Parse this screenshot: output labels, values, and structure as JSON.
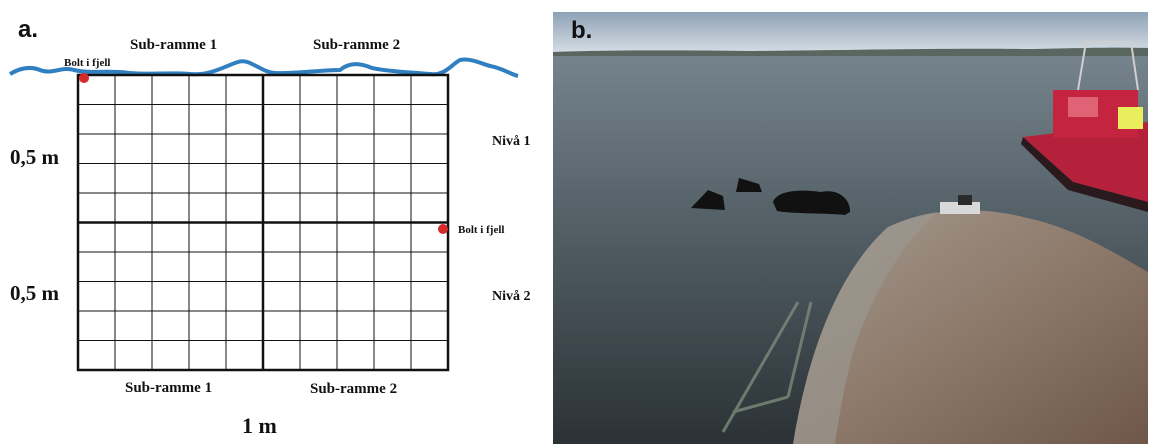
{
  "panel_a": {
    "letter": "a.",
    "top_sub_frame_1": "Sub-ramme 1",
    "top_sub_frame_2": "Sub-ramme 2",
    "bottom_sub_frame_1": "Sub-ramme 1",
    "bottom_sub_frame_2": "Sub-ramme 2",
    "bolt_top": "Bolt i fjell",
    "bolt_right": "Bolt i fjell",
    "height_top": "0,5 m",
    "height_bottom": "0,5 m",
    "level_1": "Nivå 1",
    "level_2": "Nivå 2",
    "width": "1 m",
    "colors": {
      "water_line": "#2f7fc1",
      "bolt": "#d42a2a",
      "grid": "#111111"
    }
  },
  "panel_b": {
    "letter": "b.",
    "description_colors": {
      "sky": "#c9d3dc",
      "water": "#4e5a60",
      "rock": "#8a7a6d",
      "boat_hull": "#b5213a"
    }
  }
}
